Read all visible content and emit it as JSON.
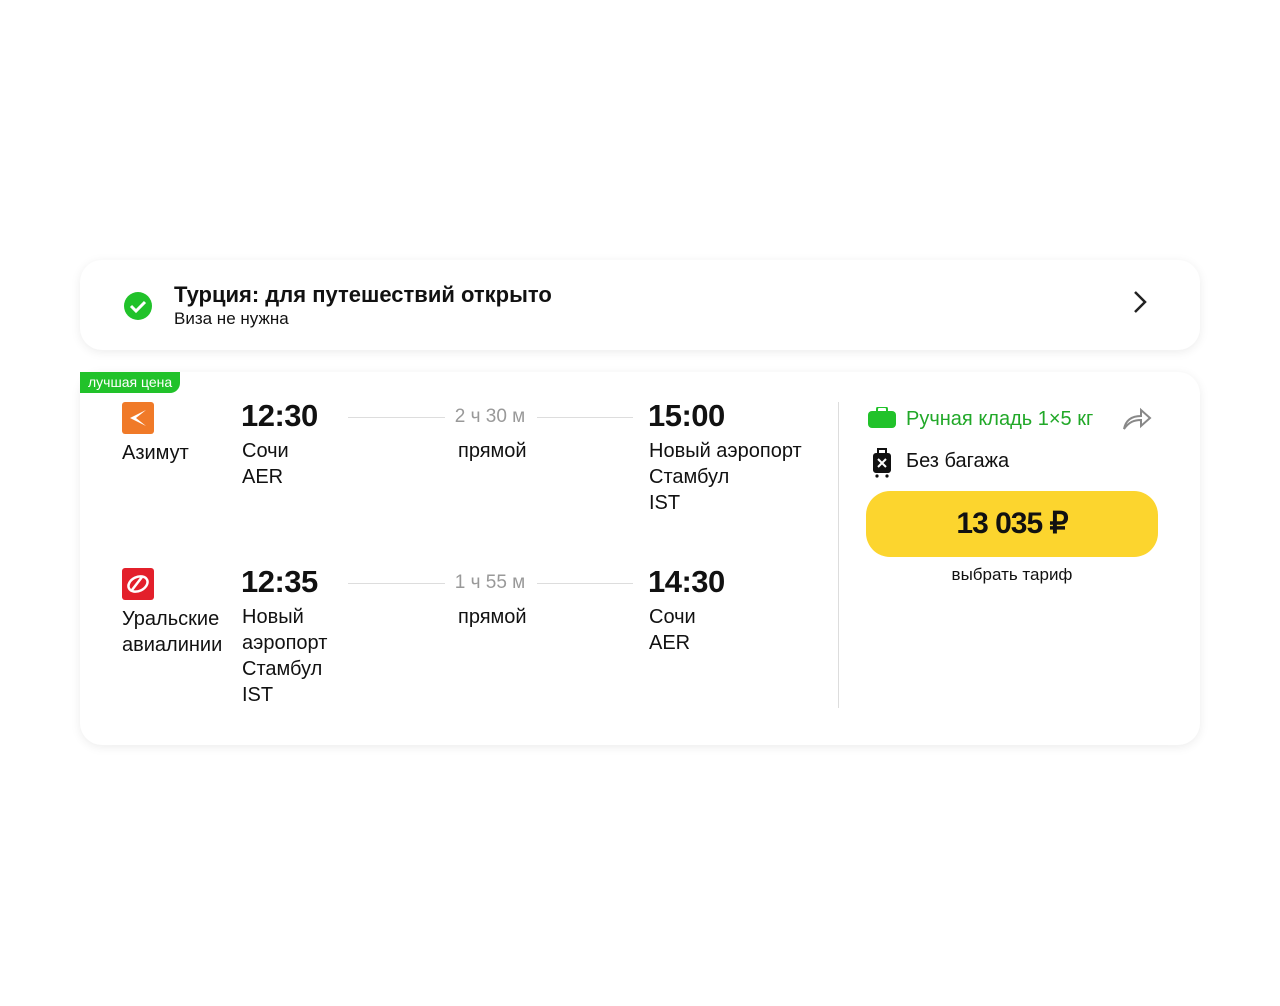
{
  "banner": {
    "title": "Турция: для путешествий открыто",
    "subtitle": "Виза не нужна"
  },
  "offer": {
    "badge": "лучшая цена",
    "flights": [
      {
        "airline": "Азимут",
        "depart_time": "12:30",
        "depart_city": "Сочи",
        "depart_code": "AER",
        "duration": "2 ч 30 м",
        "stops": "прямой",
        "arrive_time": "15:00",
        "arrive_city": "Новый аэропорт Стамбул",
        "arrive_code": "IST"
      },
      {
        "airline": "Уральские авиалинии",
        "depart_time": "12:35",
        "depart_city": "Новый аэропорт Стамбул",
        "depart_code": "IST",
        "duration": "1 ч 55 м",
        "stops": "прямой",
        "arrive_time": "14:30",
        "arrive_city": "Сочи",
        "arrive_code": "AER"
      }
    ],
    "baggage": {
      "carry_on": "Ручная кладь 1×5 кг",
      "checked": "Без багажа"
    },
    "price": "13 035 ₽",
    "action": "выбрать тариф"
  }
}
